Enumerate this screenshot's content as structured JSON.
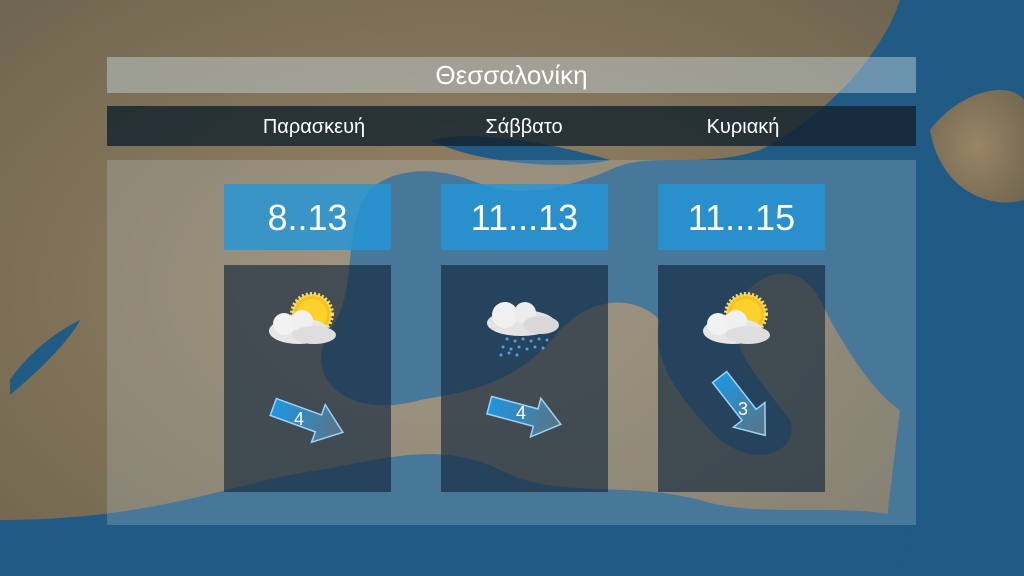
{
  "title": "Θεσσαλονίκη",
  "days": [
    {
      "name": "Παρασκευή",
      "temp": "8..13",
      "icon": "sun-behind-cloud-icon",
      "wind_speed": "4",
      "wind_direction": "from southeast"
    },
    {
      "name": "Σάββατο",
      "temp": "11...13",
      "icon": "rain-cloud-icon",
      "wind_speed": "4",
      "wind_direction": "from east-southeast"
    },
    {
      "name": "Κυριακή",
      "temp": "11...15",
      "icon": "sun-behind-cloud-icon",
      "wind_speed": "3",
      "wind_direction": "from northwest"
    }
  ],
  "colors": {
    "sea": "#1f5b85",
    "land": "#8d7a5e",
    "temp_box": "#2396d7",
    "arrow": "#1e96e0"
  }
}
